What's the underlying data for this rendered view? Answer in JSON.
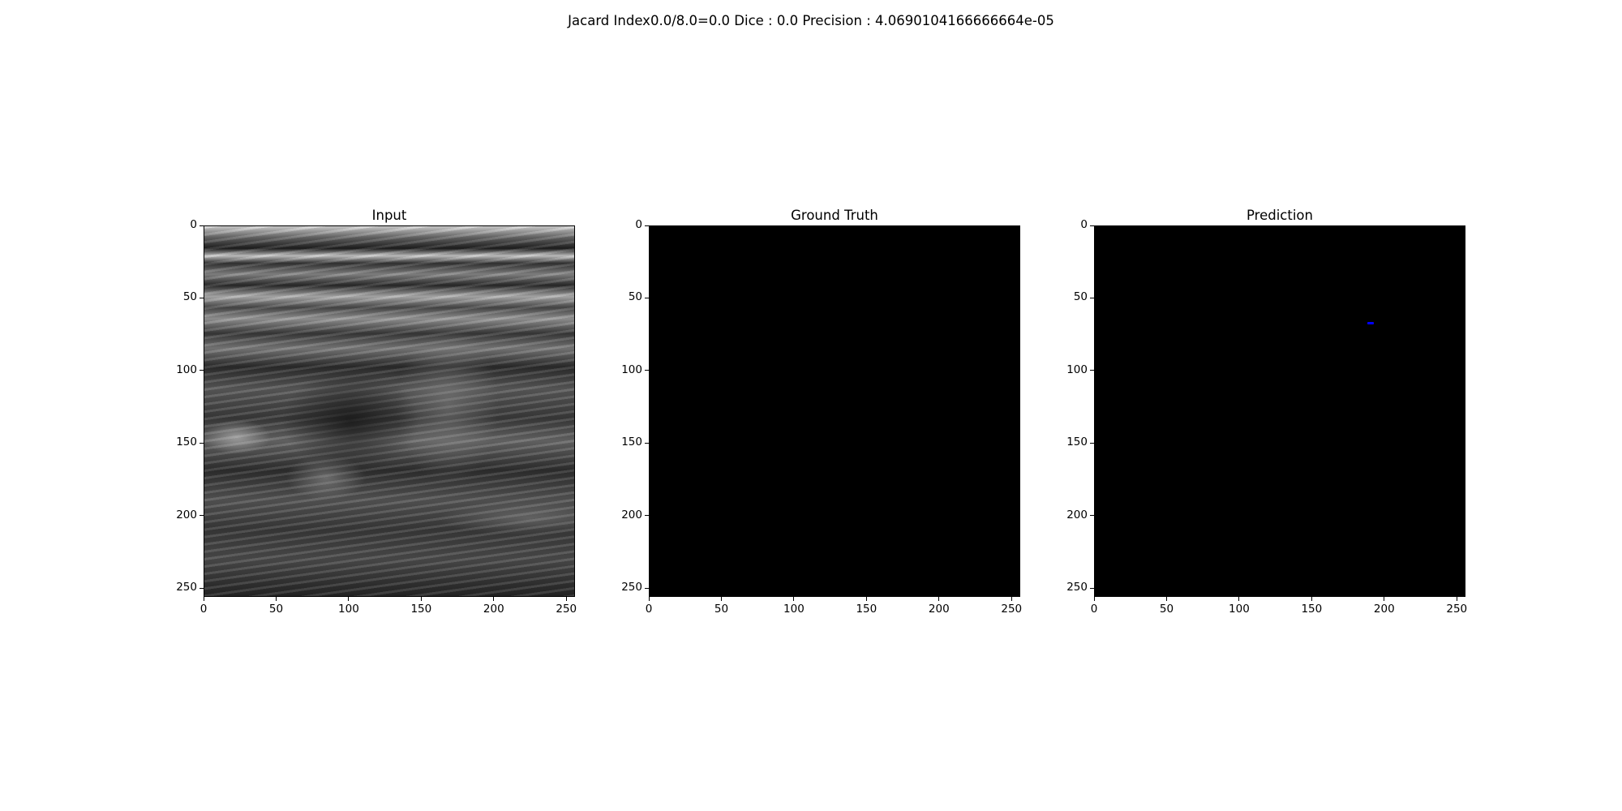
{
  "figure": {
    "suptitle": "Jacard Index0.0/8.0=0.0 Dice : 0.0 Precision : 4.0690104166666664e-05"
  },
  "panels": [
    {
      "title": "Input"
    },
    {
      "title": "Ground Truth"
    },
    {
      "title": "Prediction"
    }
  ],
  "axes": {
    "xticks": [
      "0",
      "50",
      "100",
      "150",
      "200",
      "250"
    ],
    "yticks": [
      "0",
      "50",
      "100",
      "150",
      "200",
      "250"
    ],
    "xlim": [
      0,
      256
    ],
    "ylim": [
      256,
      0
    ]
  },
  "prediction_mark": {
    "x": 190,
    "y": 67,
    "color": "#0000ff"
  }
}
